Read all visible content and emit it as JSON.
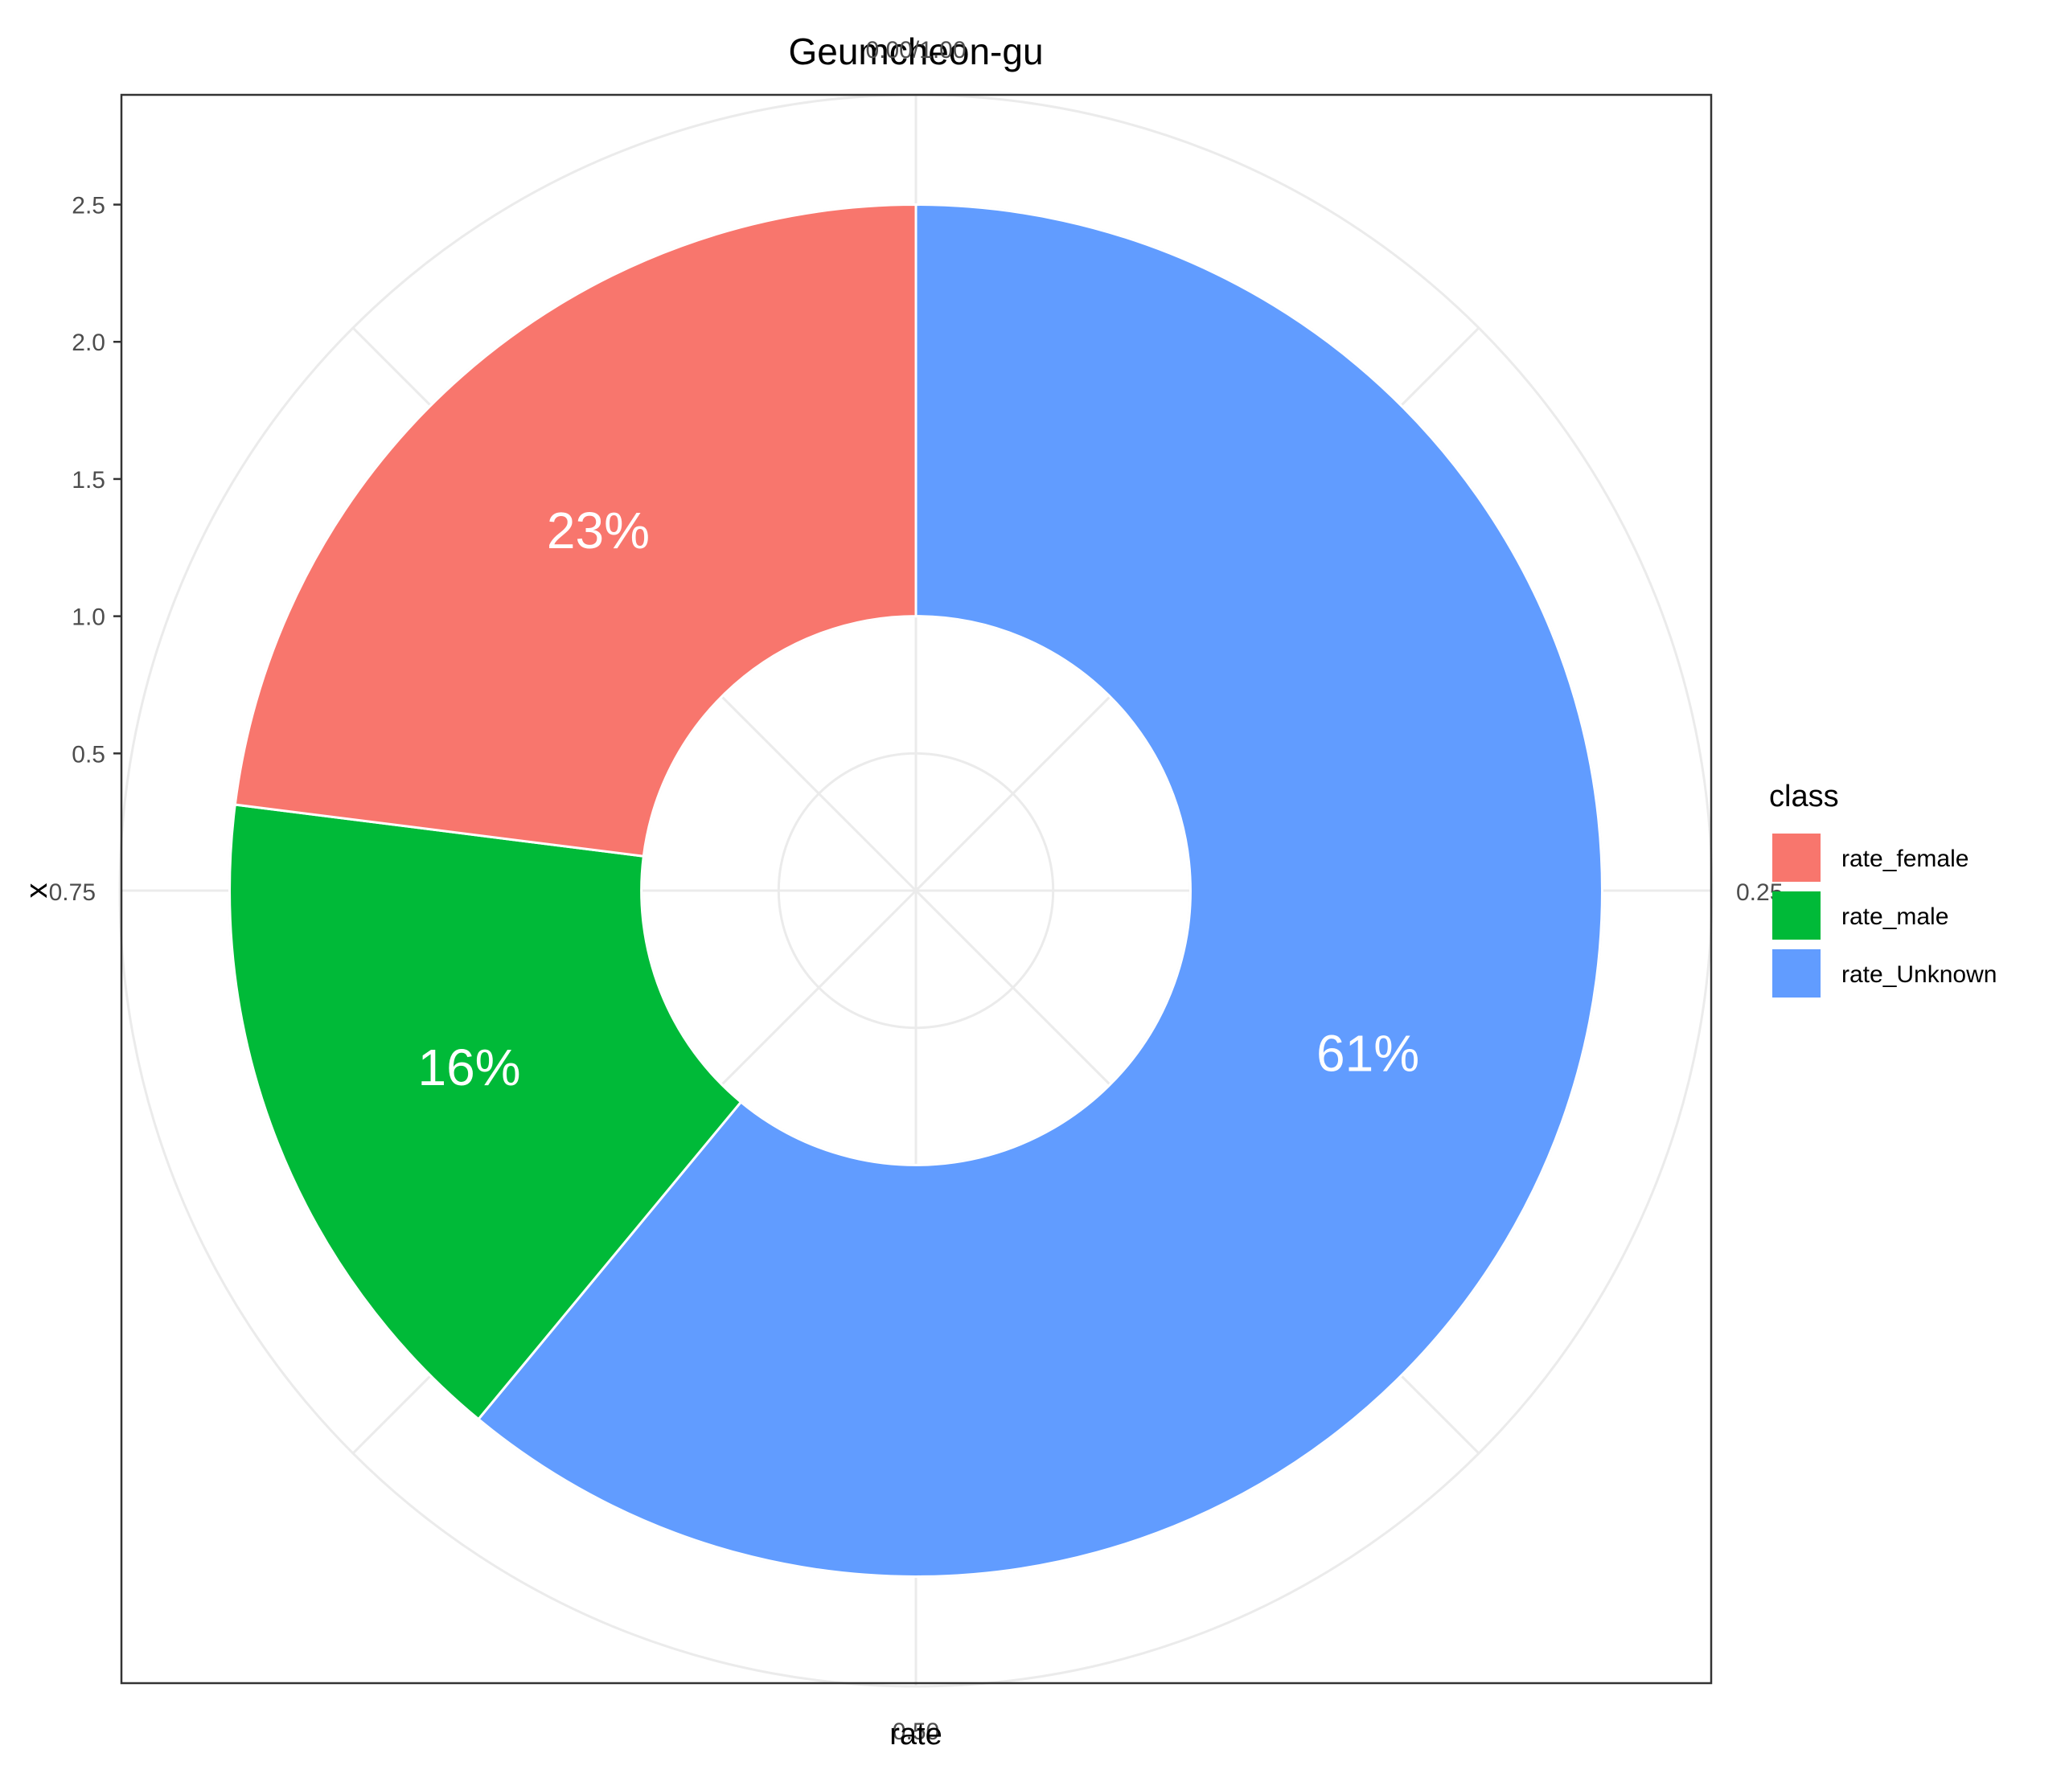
{
  "chart_data": {
    "type": "pie",
    "variant": "donut (polar coordinates)",
    "title": "Geumcheon-gu",
    "xlabel": "rate",
    "ylabel": "x",
    "categories": [
      "rate_Unknown",
      "rate_male",
      "rate_female"
    ],
    "values": [
      0.61,
      0.16,
      0.23
    ],
    "labels": [
      "61%",
      "16%",
      "23%"
    ],
    "colors": [
      "#619CFF",
      "#00BA38",
      "#F8766D"
    ],
    "theta_ticks": [
      "0.00/1.00",
      "0.25",
      "0.50",
      "0.75"
    ],
    "radial_ticks": [
      "0.5",
      "1.0",
      "1.5",
      "2.0",
      "2.5"
    ],
    "radial_range": [
      0,
      2.9
    ],
    "ring_range": [
      1.0,
      2.5
    ],
    "grid": true,
    "legend": {
      "title": "class",
      "position": "right",
      "items": [
        {
          "label": "rate_female",
          "color": "#F8766D"
        },
        {
          "label": "rate_male",
          "color": "#00BA38"
        },
        {
          "label": "rate_Unknown",
          "color": "#619CFF"
        }
      ]
    }
  }
}
